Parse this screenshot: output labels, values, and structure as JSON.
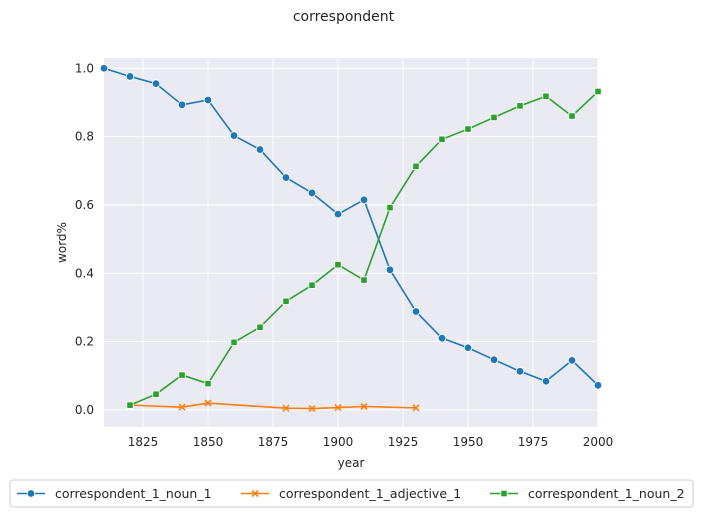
{
  "chart_data": {
    "type": "line",
    "title": "correspondent",
    "xlabel": "year",
    "ylabel": "word%",
    "xlim": [
      1810,
      2000
    ],
    "ylim": [
      -0.05,
      1.03
    ],
    "x_ticks": [
      1825,
      1850,
      1875,
      1900,
      1925,
      1950,
      1975,
      2000
    ],
    "y_ticks": [
      0.0,
      0.2,
      0.4,
      0.6,
      0.8,
      1.0
    ],
    "y_tick_labels": [
      "0.0",
      "0.2",
      "0.4",
      "0.6",
      "0.8",
      "1.0"
    ],
    "grid": true,
    "legend_position": "bottom",
    "series": [
      {
        "name": "correspondent_1_noun_1",
        "color": "#1f77b4",
        "marker": "circle",
        "x": [
          1810,
          1820,
          1830,
          1840,
          1850,
          1860,
          1870,
          1880,
          1890,
          1900,
          1910,
          1920,
          1930,
          1940,
          1950,
          1960,
          1970,
          1980,
          1990,
          2000
        ],
        "y": [
          1.0,
          0.976,
          0.955,
          0.893,
          0.907,
          0.803,
          0.762,
          0.68,
          0.635,
          0.573,
          0.615,
          0.41,
          0.288,
          0.21,
          0.182,
          0.147,
          0.113,
          0.084,
          0.145,
          0.072
        ]
      },
      {
        "name": "correspondent_1_adjective_1",
        "color": "#ff7f0e",
        "marker": "x",
        "x": [
          1820,
          1840,
          1850,
          1880,
          1890,
          1900,
          1910,
          1930
        ],
        "y": [
          0.014,
          0.008,
          0.02,
          0.005,
          0.004,
          0.007,
          0.01,
          0.006
        ]
      },
      {
        "name": "correspondent_1_noun_2",
        "color": "#2ca02c",
        "marker": "square",
        "x": [
          1820,
          1830,
          1840,
          1850,
          1860,
          1870,
          1880,
          1890,
          1900,
          1910,
          1920,
          1930,
          1940,
          1950,
          1960,
          1970,
          1980,
          1990,
          2000
        ],
        "y": [
          0.014,
          0.046,
          0.102,
          0.077,
          0.198,
          0.242,
          0.318,
          0.365,
          0.425,
          0.38,
          0.592,
          0.713,
          0.792,
          0.822,
          0.856,
          0.89,
          0.918,
          0.86,
          0.932
        ]
      }
    ]
  }
}
